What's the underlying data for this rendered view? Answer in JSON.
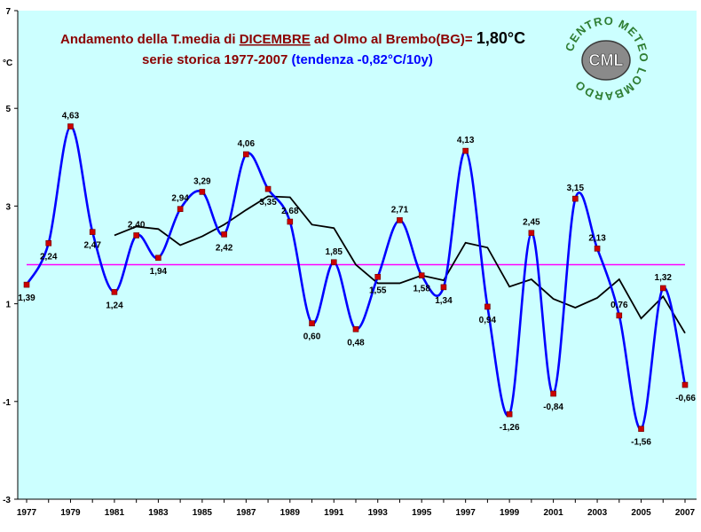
{
  "title": {
    "line1_prefix": "Andamento della T.media di ",
    "line1_month": "DICEMBRE",
    "line1_middle": " ad Olmo al Brembo(BG)= ",
    "line1_mean": "1,80°C",
    "line2_main": "serie storica 1977-2007 ",
    "line2_trend": "(tendenza -0,82°C/10y)"
  },
  "logo": {
    "text_ring": "CENTRO METEO LOMBARDO",
    "text_center": "CML"
  },
  "colors": {
    "plot_background": "#ccffff",
    "main_line": "#0000ff",
    "marker": "#cc0000",
    "moving_average": "#000000",
    "mean_line": "#ff00ff",
    "title_red": "#8b0000",
    "title_blue": "#0000ff",
    "logo_green": "#2e7d32"
  },
  "chart_data": {
    "type": "line",
    "y_axis_unit": "°C",
    "ylim": [
      -3,
      7
    ],
    "y_ticks": [
      -3,
      -1,
      1,
      3,
      5,
      7
    ],
    "x_ticks": [
      1977,
      1979,
      1981,
      1983,
      1985,
      1987,
      1989,
      1991,
      1993,
      1995,
      1997,
      1999,
      2001,
      2003,
      2005,
      2007
    ],
    "grid": false,
    "legend": "none",
    "years": [
      1977,
      1978,
      1979,
      1980,
      1981,
      1982,
      1983,
      1984,
      1985,
      1986,
      1987,
      1988,
      1989,
      1990,
      1991,
      1992,
      1993,
      1994,
      1995,
      1996,
      1997,
      1998,
      1999,
      2000,
      2001,
      2002,
      2003,
      2004,
      2005,
      2006,
      2007
    ],
    "series": [
      {
        "values": [
          1.39,
          2.24,
          4.63,
          2.47,
          1.24,
          2.4,
          1.94,
          2.94,
          3.29,
          2.42,
          4.06,
          3.35,
          2.68,
          0.6,
          1.85,
          0.48,
          1.55,
          2.71,
          1.58,
          1.34,
          4.13,
          0.94,
          -1.26,
          2.45,
          -0.84,
          3.15,
          2.13,
          0.76,
          -1.56,
          1.32,
          -0.66
        ],
        "labels": [
          "1,39",
          "2,24",
          "4,63",
          "2,47",
          "1,24",
          "2,40",
          "1,94",
          "2,94",
          "3,29",
          "2,42",
          "4,06",
          "3,35",
          "2,68",
          "0,60",
          "1,85",
          "0,48",
          "1,55",
          "2,71",
          "1,58",
          "1,34",
          "4,13",
          "0,94",
          "-1,26",
          "2,45",
          "-0,84",
          "3,15",
          "2,13",
          "0,76",
          "-1,56",
          "1,32",
          "-0,66"
        ]
      },
      {
        "x": [
          1981,
          1982,
          1983,
          1984,
          1985,
          1986,
          1987,
          1988,
          1989,
          1990,
          1991,
          1992,
          1993,
          1994,
          1995,
          1996,
          1997,
          1998,
          1999,
          2000,
          2001,
          2002,
          2003,
          2004,
          2005,
          2006,
          2007
        ],
        "values": [
          2.4,
          2.58,
          2.53,
          2.2,
          2.38,
          2.62,
          2.92,
          3.2,
          3.18,
          2.62,
          2.55,
          1.8,
          1.42,
          1.42,
          1.58,
          1.48,
          2.25,
          2.15,
          1.35,
          1.5,
          1.1,
          0.92,
          1.12,
          1.5,
          0.7,
          1.15,
          0.4
        ]
      },
      {
        "x": [
          1977,
          2007
        ],
        "values": [
          1.8,
          1.8
        ]
      }
    ]
  }
}
